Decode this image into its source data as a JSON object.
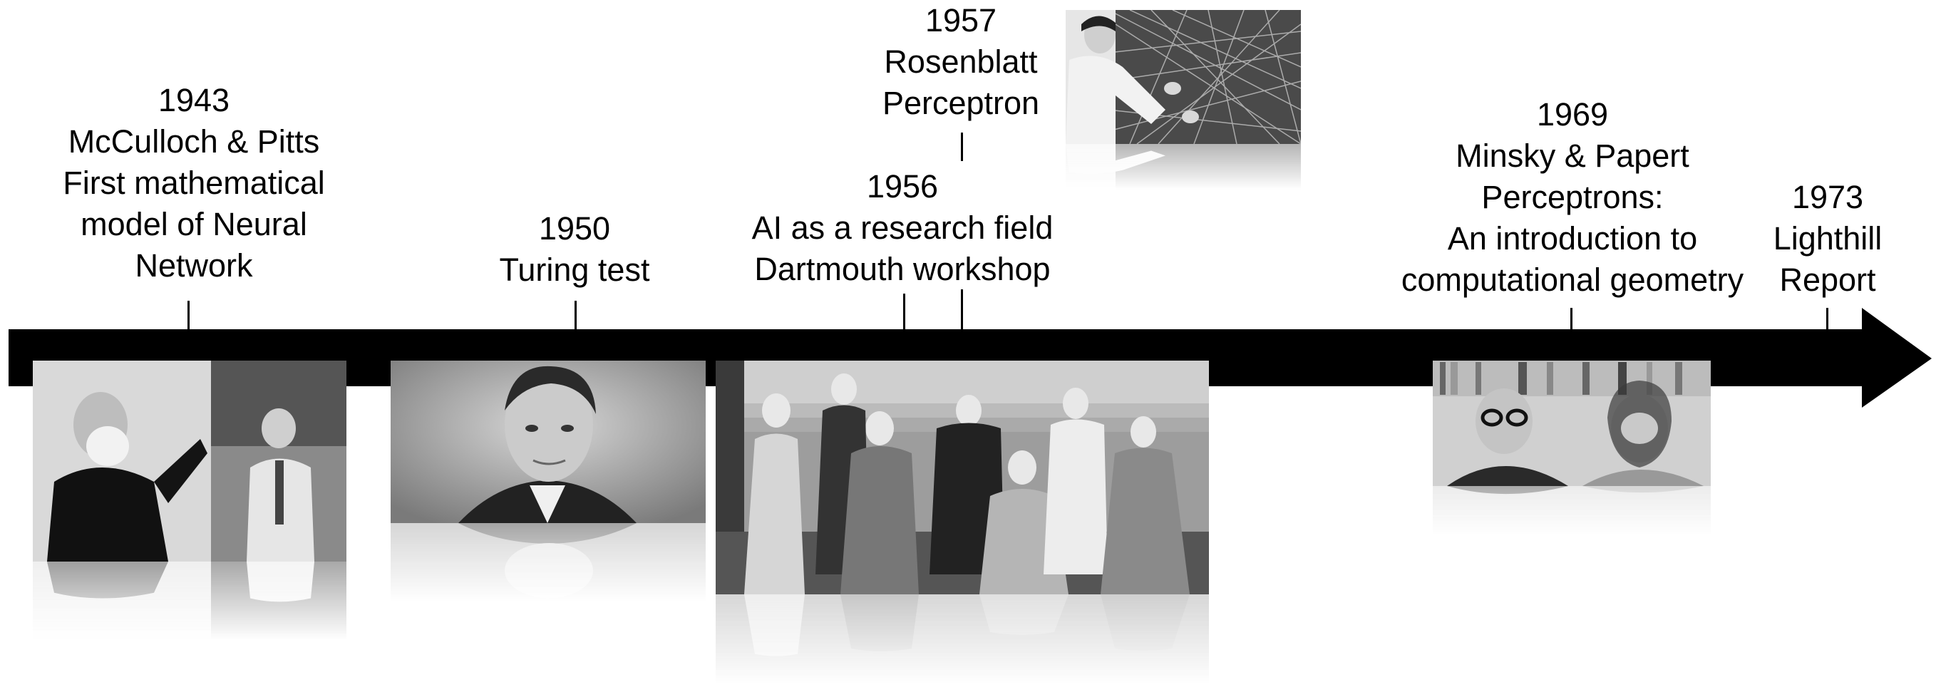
{
  "events": [
    {
      "id": "1943",
      "year": "1943",
      "lines": [
        "McCulloch & Pitts",
        "First mathematical",
        "model of Neural",
        "Network"
      ]
    },
    {
      "id": "1950",
      "year": "1950",
      "lines": [
        "Turing test"
      ]
    },
    {
      "id": "1956",
      "year": "1956",
      "lines": [
        "AI as a research field",
        "Dartmouth workshop"
      ]
    },
    {
      "id": "1957",
      "year": "1957",
      "lines": [
        "Rosenblatt",
        "Perceptron"
      ]
    },
    {
      "id": "1969",
      "year": "1969",
      "lines": [
        "Minsky & Papert",
        "Perceptrons:",
        "An introduction to",
        "computational geometry"
      ]
    },
    {
      "id": "1973",
      "year": "1973",
      "lines": [
        "Lighthill",
        "Report"
      ]
    }
  ],
  "photos": [
    {
      "id": "mcculloch-pitts-photo",
      "subject": "McCulloch and Pitts portraits"
    },
    {
      "id": "turing-photo",
      "subject": "Alan Turing portrait"
    },
    {
      "id": "dartmouth-photo",
      "subject": "Dartmouth workshop group photo"
    },
    {
      "id": "rosenblatt-photo",
      "subject": "Rosenblatt with perceptron wiring"
    },
    {
      "id": "minsky-papert-photo",
      "subject": "Minsky and Papert portrait"
    }
  ],
  "colors": {
    "arrow": "#000000",
    "text": "#000000",
    "background": "#ffffff"
  }
}
